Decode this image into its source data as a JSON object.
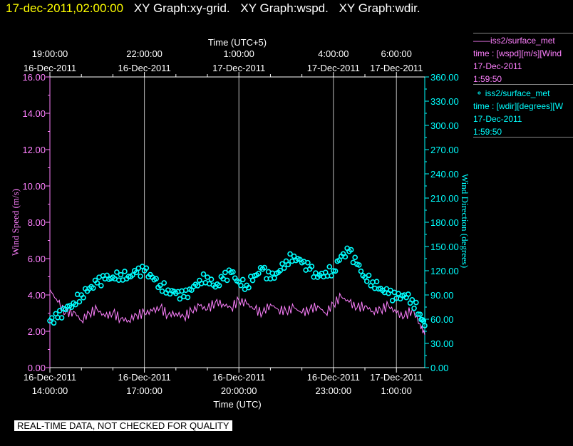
{
  "header": {
    "timestamp": "17-dec-2011,02:00:00",
    "graphs": [
      "XY Graph:xy-grid.",
      "XY Graph:wspd.",
      "XY Graph:wdir."
    ]
  },
  "legend": [
    {
      "line1": "iss2/surface_met",
      "line2": "time : [wspd][m/s][Wind",
      "line3": "17-Dec-2011",
      "line4": "1:59:50",
      "color": "#ff80ff",
      "marker": "line"
    },
    {
      "line1": "iss2/surface_met",
      "line2": "time : [wdir][degrees][W",
      "line3": "17-Dec-2011",
      "line4": "1:59:50",
      "color": "#00ffff",
      "marker": "circle"
    }
  ],
  "banner": "REAL-TIME DATA, NOT CHECKED FOR QUALITY",
  "chart_data": {
    "type": "line",
    "xlabel": "Time (UTC)",
    "x2label": "Time (UTC+5)",
    "ylabel": "Wind Speed (m/s)",
    "y2label": "Wind Direction (degrees)",
    "xlim_hours_utc": [
      0,
      11.9
    ],
    "ylim": [
      0,
      16
    ],
    "y2lim": [
      0,
      360
    ],
    "yticks": [
      "0.00",
      "2.00",
      "4.00",
      "6.00",
      "8.00",
      "10.00",
      "12.00",
      "14.00",
      "16.00"
    ],
    "y2ticks": [
      "0.00",
      "30.00",
      "60.00",
      "90.00",
      "120.00",
      "150.00",
      "180.00",
      "210.00",
      "240.00",
      "270.00",
      "300.00",
      "330.00",
      "360.00"
    ],
    "xticks_bottom": [
      {
        "hour": 0,
        "date": "16-Dec-2011",
        "time": "14:00:00"
      },
      {
        "hour": 3,
        "date": "16-Dec-2011",
        "time": "17:00:00"
      },
      {
        "hour": 6,
        "date": "16-Dec-2011",
        "time": "20:00:00"
      },
      {
        "hour": 9,
        "date": "16-Dec-2011",
        "time": "23:00:00"
      },
      {
        "hour": 11,
        "date": "17-Dec-2011",
        "time": "1:00:00"
      }
    ],
    "xticks_top": [
      {
        "hour": 0,
        "time": "19:00:00",
        "date": "16-Dec-2011"
      },
      {
        "hour": 3,
        "time": "22:00:00",
        "date": "16-Dec-2011"
      },
      {
        "hour": 6,
        "time": "1:00:00",
        "date": "17-Dec-2011"
      },
      {
        "hour": 9,
        "time": "4:00:00",
        "date": "17-Dec-2011"
      },
      {
        "hour": 11,
        "time": "6:00:00",
        "date": "17-Dec-2011"
      }
    ],
    "gridlines_hours": [
      3,
      6,
      9,
      11
    ],
    "series": [
      {
        "name": "iss2/surface_met wspd",
        "axis": "left",
        "color": "#ff80ff",
        "style": "line",
        "x": [
          0,
          0.25,
          0.5,
          0.75,
          1,
          1.25,
          1.5,
          1.75,
          2,
          2.25,
          2.5,
          2.75,
          3,
          3.25,
          3.5,
          3.75,
          4,
          4.25,
          4.5,
          4.75,
          5,
          5.25,
          5.5,
          5.75,
          6,
          6.25,
          6.5,
          6.75,
          7,
          7.25,
          7.5,
          7.75,
          8,
          8.25,
          8.5,
          8.75,
          9,
          9.25,
          9.5,
          9.75,
          10,
          10.25,
          10.5,
          10.75,
          11,
          11.25,
          11.5,
          11.75,
          11.9
        ],
        "values": [
          4.3,
          3.6,
          3.0,
          3.1,
          2.6,
          3.0,
          3.2,
          2.8,
          3.0,
          2.7,
          2.6,
          2.9,
          3.0,
          3.1,
          3.3,
          2.9,
          3.0,
          2.8,
          3.1,
          3.4,
          3.2,
          3.6,
          3.5,
          3.3,
          3.7,
          3.5,
          3.2,
          3.0,
          3.5,
          3.2,
          3.1,
          3.3,
          3.0,
          3.2,
          3.4,
          3.0,
          3.5,
          3.9,
          3.6,
          3.3,
          3.4,
          3.1,
          3.2,
          3.4,
          3.0,
          2.8,
          3.2,
          2.4,
          1.8
        ]
      },
      {
        "name": "iss2/surface_met wdir",
        "axis": "right",
        "color": "#00ffff",
        "style": "circle",
        "x": [
          0,
          0.25,
          0.5,
          0.75,
          1,
          1.25,
          1.5,
          1.75,
          2,
          2.25,
          2.5,
          2.75,
          3,
          3.25,
          3.5,
          3.75,
          4,
          4.25,
          4.5,
          4.75,
          5,
          5.25,
          5.5,
          5.75,
          6,
          6.25,
          6.5,
          6.75,
          7,
          7.25,
          7.5,
          7.75,
          8,
          8.25,
          8.5,
          8.75,
          9,
          9.25,
          9.5,
          9.75,
          10,
          10.25,
          10.5,
          10.75,
          11,
          11.25,
          11.5,
          11.75,
          11.9
        ],
        "values": [
          58,
          62,
          72,
          80,
          90,
          98,
          105,
          110,
          112,
          115,
          113,
          118,
          120,
          112,
          102,
          96,
          92,
          88,
          96,
          108,
          112,
          100,
          110,
          118,
          106,
          102,
          114,
          122,
          110,
          118,
          132,
          138,
          130,
          122,
          112,
          118,
          120,
          138,
          144,
          128,
          112,
          106,
          98,
          92,
          86,
          90,
          84,
          66,
          52
        ]
      }
    ]
  }
}
